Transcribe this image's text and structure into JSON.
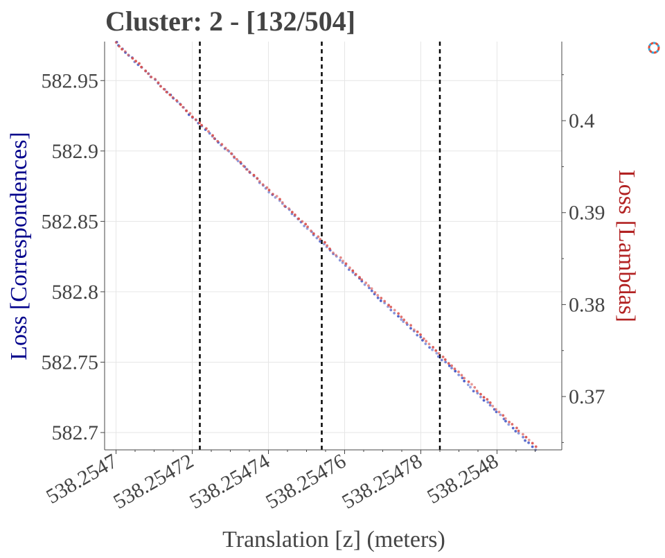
{
  "chart_data": {
    "type": "scatter",
    "title": "Cluster: 2 - [132/504]",
    "xlabel": "Translation [z] (meters)",
    "ylabel_left": "Loss [Correspondences]",
    "ylabel_right": "Loss [Lambdas]",
    "colors": {
      "left_axis": "#00008b",
      "right_axis": "#b22222",
      "correspondences_points": "#4b5fc8",
      "lambdas_points": "#d9534f",
      "vlines": "#000000",
      "title": "#444444"
    },
    "x_range": [
      538.254697,
      538.254817
    ],
    "x_tick_values": [
      538.2547,
      538.25472,
      538.25474,
      538.25476,
      538.25478,
      538.2548
    ],
    "x_tick_labels": [
      "538.2547",
      "538.25472",
      "538.25474",
      "538.25476",
      "538.25478",
      "538.2548"
    ],
    "x_minor_ticks": [
      538.254705,
      538.25471,
      538.254715,
      538.254725,
      538.25473,
      538.254735,
      538.254745,
      538.25475,
      538.254755,
      538.254765,
      538.25477,
      538.254775,
      538.254785,
      538.25479,
      538.254795,
      538.254805,
      538.25481
    ],
    "y_left_range": [
      582.6877,
      582.9777
    ],
    "y_left_tick_values": [
      582.7,
      582.75,
      582.8,
      582.85,
      582.9,
      582.95
    ],
    "y_left_tick_labels": [
      "582.7",
      "582.75",
      "582.8",
      "582.85",
      "582.9",
      "582.95"
    ],
    "y_right_range": [
      0.3642,
      0.4086
    ],
    "y_right_tick_values": [
      0.37,
      0.38,
      0.39,
      0.4
    ],
    "y_right_tick_labels": [
      "0.37",
      "0.38",
      "0.39",
      "0.4"
    ],
    "y_right_minor_ticks": [
      0.365,
      0.375,
      0.385,
      0.395,
      0.405
    ],
    "grid": true,
    "vertical_lines_x": [
      538.254722,
      538.254754,
      538.254785
    ],
    "series": [
      {
        "axis": "left",
        "x_start": 538.2547,
        "x_end": 538.25481,
        "y_start": 582.977,
        "y_end": 582.688,
        "points_count": 132
      },
      {
        "axis": "right",
        "x_start": 538.2547,
        "x_end": 538.25481,
        "y_start": 0.4085,
        "y_end": 0.3646,
        "points_count": 132
      }
    ]
  }
}
